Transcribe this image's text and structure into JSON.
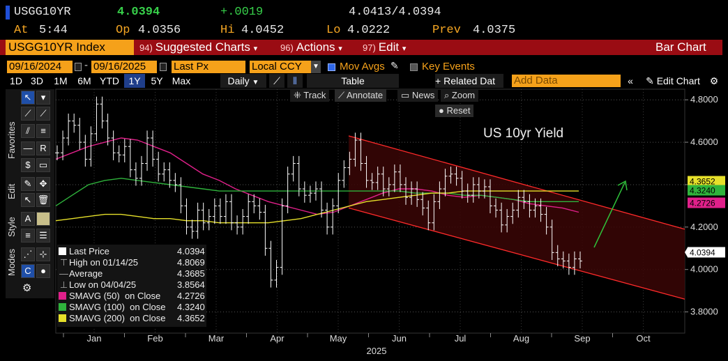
{
  "header": {
    "ticker": "USGG10YR",
    "last": "4.0394",
    "change": "+.0019",
    "bid_ask": "4.0413/4.0394",
    "at_label": "At",
    "time": "5:44",
    "op_label": "Op",
    "open": "4.0356",
    "hi_label": "Hi",
    "high": "4.0452",
    "lo_label": "Lo",
    "low": "4.0222",
    "prev_label": "Prev",
    "prev": "4.0375"
  },
  "menubar": {
    "security": "USGG10YR Index",
    "suggested_num": "94)",
    "suggested": "Suggested Charts",
    "actions_num": "96)",
    "actions": "Actions",
    "edit_num": "97)",
    "edit": "Edit",
    "title": "Bar Chart"
  },
  "inputs": {
    "start_date": "09/16/2024",
    "end_date": "09/16/2025",
    "field": "Last Px",
    "currency": "Local CCY",
    "mov_avgs": "Mov Avgs",
    "key_events": "Key Events"
  },
  "toolbar": {
    "ranges": [
      "1D",
      "3D",
      "1M",
      "6M",
      "YTD",
      "1Y",
      "5Y",
      "Max"
    ],
    "selected_range": "1Y",
    "period": "Daily",
    "table": "Table",
    "related": "Related Dat",
    "add_data_placeholder": "Add Data",
    "edit_chart": "Edit Chart"
  },
  "chart_tools": {
    "track": "Track",
    "annotate": "Annotate",
    "news": "News",
    "zoom": "Zoom",
    "reset": "Reset"
  },
  "side_tabs": [
    "Favorites",
    "Edit",
    "Style",
    "Modes"
  ],
  "colors": {
    "price": "#ffffff",
    "sma50": "#e0208a",
    "sma100": "#2fb33c",
    "sma200": "#e6e02a",
    "channel": "#ff2a2a",
    "channel_fill": "#3a0606",
    "arrow": "#2fc23a",
    "amber": "#f5a11a",
    "menubar": "#9a0c13"
  },
  "chart_data": {
    "type": "line",
    "title": "US 10yr Yield",
    "ylim": [
      3.7,
      4.85
    ],
    "y_ticks": [
      "4.8000",
      "4.6000",
      "4.4000",
      "4.2000",
      "4.0000",
      "3.8000"
    ],
    "x_ticks": [
      "Jan",
      "Feb",
      "Mar",
      "Apr",
      "May",
      "Jun",
      "Jul",
      "Aug",
      "Sep",
      "Oct"
    ],
    "x_year": "2025",
    "grid": true,
    "series": [
      {
        "name": "Last Price",
        "values": [
          4.55,
          4.62,
          4.7,
          4.68,
          4.6,
          4.52,
          4.64,
          4.78,
          4.7,
          4.62,
          4.55,
          4.54,
          4.58,
          4.47,
          4.43,
          4.5,
          4.62,
          4.52,
          4.45,
          4.47,
          4.42,
          4.4,
          4.3,
          4.2,
          4.18,
          4.28,
          4.22,
          4.25,
          4.3,
          4.25,
          4.32,
          4.22,
          4.2,
          4.25,
          4.32,
          4.3,
          4.27,
          4.1,
          3.95,
          4.01,
          4.3,
          4.45,
          4.5,
          4.38,
          4.35,
          4.36,
          4.38,
          4.28,
          4.2,
          4.3,
          4.42,
          4.48,
          4.52,
          4.61,
          4.5,
          4.42,
          4.41,
          4.45,
          4.38,
          4.4,
          4.46,
          4.4,
          4.34,
          4.38,
          4.33,
          4.29,
          4.22,
          4.32,
          4.38,
          4.44,
          4.45,
          4.43,
          4.37,
          4.35,
          4.4,
          4.37,
          4.39,
          4.3,
          4.28,
          4.21,
          4.25,
          4.28,
          4.34,
          4.32,
          4.28,
          4.3,
          4.26,
          4.2,
          4.08,
          4.05,
          4.04,
          4.01,
          4.05,
          4.04
        ]
      },
      {
        "name": "SMAVG (50) on Close",
        "values": [
          4.52,
          4.55,
          4.58,
          4.6,
          4.62,
          4.61,
          4.58,
          4.55,
          4.5,
          4.45,
          4.42,
          4.38,
          4.35,
          4.32,
          4.3,
          4.28,
          4.26,
          4.27,
          4.3,
          4.33,
          4.36,
          4.38,
          4.38,
          4.37,
          4.35,
          4.34,
          4.35,
          4.34,
          4.33,
          4.31,
          4.3,
          4.29,
          4.27
        ]
      },
      {
        "name": "SMAVG (100) on Close",
        "values": [
          4.3,
          4.35,
          4.4,
          4.42,
          4.43,
          4.42,
          4.41,
          4.4,
          4.39,
          4.38,
          4.37,
          4.37,
          4.37,
          4.37,
          4.37,
          4.37,
          4.37,
          4.37,
          4.37,
          4.37,
          4.37,
          4.37,
          4.36,
          4.36,
          4.36,
          4.35,
          4.35,
          4.34,
          4.33,
          4.32,
          4.32,
          4.32,
          4.32
        ]
      },
      {
        "name": "SMAVG (200) on Close",
        "values": [
          4.23,
          4.24,
          4.25,
          4.26,
          4.26,
          4.25,
          4.24,
          4.24,
          4.23,
          4.23,
          4.22,
          4.22,
          4.22,
          4.22,
          4.23,
          4.24,
          4.26,
          4.28,
          4.3,
          4.32,
          4.33,
          4.34,
          4.35,
          4.36,
          4.36,
          4.37,
          4.37,
          4.37,
          4.37,
          4.37,
          4.37,
          4.37,
          4.37
        ]
      }
    ],
    "tags": [
      {
        "value": "4.3652",
        "color": "#e6e02a"
      },
      {
        "value": "4.3240",
        "color": "#2fb33c"
      },
      {
        "value": "4.2726",
        "color": "#e0208a"
      },
      {
        "value": "4.0394",
        "color": "#ffffff"
      }
    ],
    "legend": [
      {
        "label": "Last Price",
        "value": "4.0394",
        "color": "#ffffff"
      },
      {
        "label": "High on 01/14/25",
        "value": "4.8069",
        "color": ""
      },
      {
        "label": "Average",
        "value": "4.3685",
        "color": ""
      },
      {
        "label": "Low on 04/04/25",
        "value": "3.8564",
        "color": ""
      },
      {
        "label": "SMAVG (50)  on Close",
        "value": "4.2726",
        "color": "#e0208a"
      },
      {
        "label": "SMAVG (100)  on Close",
        "value": "4.3240",
        "color": "#2fb33c"
      },
      {
        "label": "SMAVG (200)  on Close",
        "value": "4.3652",
        "color": "#e6e02a"
      }
    ]
  }
}
